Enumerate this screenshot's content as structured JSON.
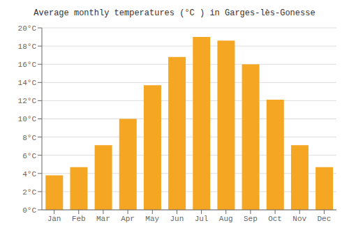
{
  "chart_data": {
    "type": "bar",
    "title": "Average monthly temperatures (°C ) in Garges-lès-Gonesse",
    "categories": [
      "Jan",
      "Feb",
      "Mar",
      "Apr",
      "May",
      "Jun",
      "Jul",
      "Aug",
      "Sep",
      "Oct",
      "Nov",
      "Dec"
    ],
    "values": [
      3.8,
      4.7,
      7.1,
      10.0,
      13.7,
      16.8,
      19.0,
      18.6,
      16.0,
      12.1,
      7.1,
      4.7
    ],
    "color": "#F5A623",
    "ylim": [
      0,
      20
    ],
    "yticks": [
      {
        "value": 0,
        "label": "0°C"
      },
      {
        "value": 2,
        "label": "2°C"
      },
      {
        "value": 4,
        "label": "4°C"
      },
      {
        "value": 6,
        "label": "6°C"
      },
      {
        "value": 8,
        "label": "8°C"
      },
      {
        "value": 10,
        "label": "10°C"
      },
      {
        "value": 12,
        "label": "12°C"
      },
      {
        "value": 14,
        "label": "14°C"
      },
      {
        "value": 16,
        "label": "16°C"
      },
      {
        "value": 18,
        "label": "18°C"
      },
      {
        "value": 20,
        "label": "20°C"
      }
    ],
    "grid": true
  }
}
